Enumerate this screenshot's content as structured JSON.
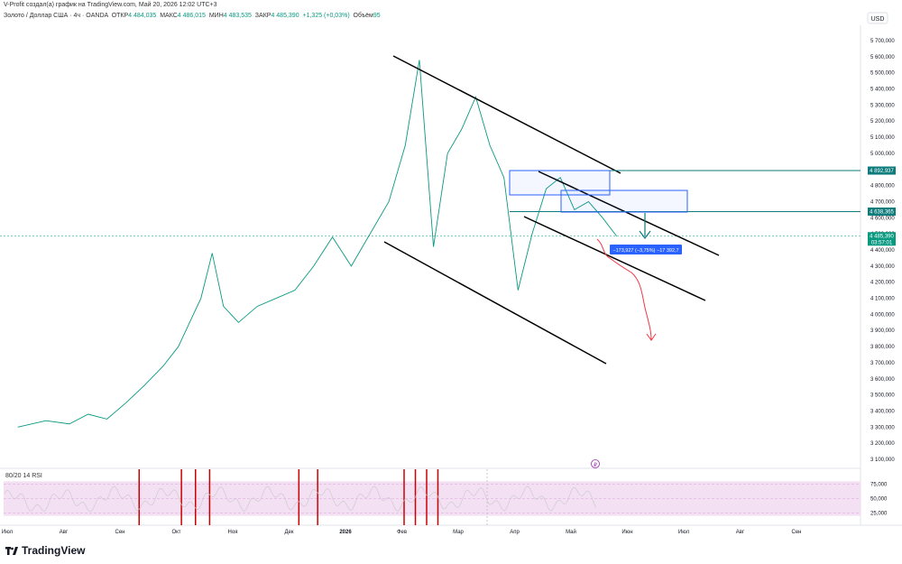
{
  "attribution": "V-Profit создал(а) график на TradingView.com, Май 20, 2026 12:02 UTC+3",
  "header": {
    "symbol": "Золото / Доллар США · 4ч · OANDA",
    "open_label": "ОТКР",
    "open": "4 484,035",
    "high_label": "МАКС",
    "high": "4 486,015",
    "low_label": "МИН",
    "low": "4 483,535",
    "close_label": "ЗАКР",
    "close": "4 485,390",
    "change": "+1,325 (+0,03%)",
    "volume_label": "Объём",
    "volume": "95"
  },
  "currency": "USD",
  "brand": "TradingView",
  "chart_data": [
    {
      "type": "candlestick",
      "y_axis": {
        "ylim": [
          3050000,
          5850000
        ],
        "ticks": [
          "3 100,000",
          "3 200,000",
          "3 300,000",
          "3 400,000",
          "3 500,000",
          "3 600,000",
          "3 700,000",
          "3 800,000",
          "3 900,000",
          "4 000,000",
          "4 100,000",
          "4 200,000",
          "4 300,000",
          "4 400,000",
          "4 500,000",
          "4 600,000",
          "4 700,000",
          "4 800,000",
          "4 900,000",
          "5 000,000",
          "5 100,000",
          "5 200,000",
          "5 300,000",
          "5 400,000",
          "5 500,000",
          "5 600,000",
          "5 700,000"
        ],
        "tick_values": [
          3100000,
          3200000,
          3300000,
          3400000,
          3500000,
          3600000,
          3700000,
          3800000,
          3900000,
          4000000,
          4100000,
          4200000,
          4300000,
          4400000,
          4500000,
          4600000,
          4700000,
          4800000,
          4900000,
          5000000,
          5100000,
          5200000,
          5300000,
          5400000,
          5500000,
          5600000,
          5700000
        ]
      },
      "x_axis": {
        "ticks": [
          "Июл",
          "Авг",
          "Сен",
          "Окт",
          "Ноя",
          "Дек",
          "2026",
          "Фев",
          "Мар",
          "Апр",
          "Май",
          "Июн",
          "Июл",
          "Авг",
          "Сен"
        ],
        "bold_tick": "2026"
      },
      "price_trace": [
        [
          "Июл",
          3300000
        ],
        [
          "Июл",
          3340000
        ],
        [
          "Авг",
          3320000
        ],
        [
          "Авг",
          3380000
        ],
        [
          "Авг",
          3350000
        ],
        [
          "Сен",
          3450000
        ],
        [
          "Сен",
          3560000
        ],
        [
          "Сен",
          3680000
        ],
        [
          "Окт",
          3800000
        ],
        [
          "Окт",
          3950000
        ],
        [
          "Окт",
          4100000
        ],
        [
          "Окт",
          4380000
        ],
        [
          "Окт",
          4050000
        ],
        [
          "Ноя",
          3950000
        ],
        [
          "Ноя",
          4050000
        ],
        [
          "Ноя",
          4100000
        ],
        [
          "Дек",
          4150000
        ],
        [
          "Дек",
          4300000
        ],
        [
          "Дек",
          4480000
        ],
        [
          "2026",
          4300000
        ],
        [
          "2026",
          4500000
        ],
        [
          "2026",
          4700000
        ],
        [
          "Фев",
          5050000
        ],
        [
          "Фев",
          5580000
        ],
        [
          "Фев",
          4420000
        ],
        [
          "Фев",
          5000000
        ],
        [
          "Мар",
          5150000
        ],
        [
          "Мар",
          5350000
        ],
        [
          "Мар",
          5050000
        ],
        [
          "Мар",
          4850000
        ],
        [
          "Апр",
          4150000
        ],
        [
          "Апр",
          4500000
        ],
        [
          "Апр",
          4780000
        ],
        [
          "Апр",
          4850000
        ],
        [
          "Май",
          4650000
        ],
        [
          "Май",
          4700000
        ],
        [
          "Май",
          4600000
        ],
        [
          "Май",
          4485390
        ]
      ],
      "current_price": {
        "label": "4 485,390",
        "timer": "03:57:01",
        "value": 4485390
      },
      "levels": [
        {
          "label": "4 892,937",
          "value": 4892937,
          "color": "#0c7b7b"
        },
        {
          "label": "4 638,365",
          "value": 4638365,
          "color": "#0c7b7b"
        }
      ],
      "measure_label": "−173,927 (−3,75%) −17 392,7",
      "accent_color": "#089981",
      "down_color": "#f23645",
      "channel_color": "#000000",
      "measure_color": "#2962ff"
    },
    {
      "type": "line",
      "title": "80/20 14 RSI",
      "ylim": [
        10,
        90
      ],
      "ticks": [
        "75,000",
        "50,000",
        "25,000"
      ],
      "tick_values": [
        75,
        50,
        25
      ],
      "band": [
        20,
        80
      ],
      "band_color": "#f3e0f3",
      "line_color": "#c8c8c8",
      "signal_color": "#cc0000",
      "signal_positions": [
        "Сен",
        "Окт",
        "Окт",
        "Окт",
        "Дек",
        "Дек",
        "Фев",
        "Фев",
        "Фев",
        "Фев"
      ]
    }
  ]
}
